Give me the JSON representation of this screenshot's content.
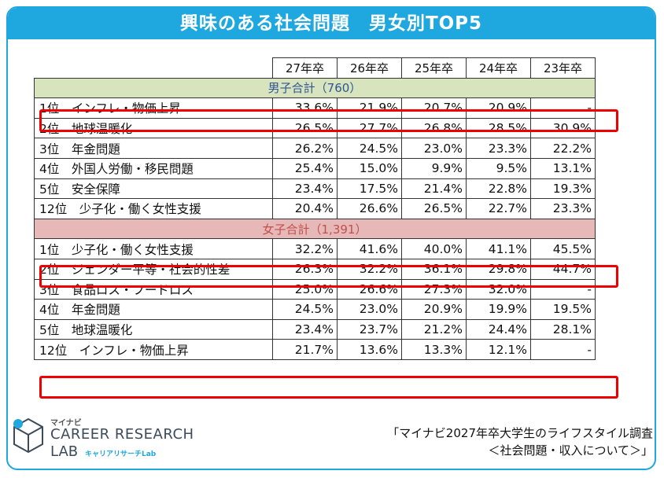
{
  "title": "興味のある社会問題　男女別TOP5",
  "columns": [
    "27年卒",
    "26年卒",
    "25年卒",
    "24年卒",
    "23年卒"
  ],
  "male": {
    "header": "男子合計（760）",
    "rows": [
      {
        "label": "1位　インフレ・物価上昇",
        "values": [
          "33.6%",
          "21.9%",
          "20.7%",
          "20.9%",
          "-"
        ]
      },
      {
        "label": "2位　地球温暖化",
        "values": [
          "26.5%",
          "27.7%",
          "26.8%",
          "28.5%",
          "30.9%"
        ]
      },
      {
        "label": "3位　年金問題",
        "values": [
          "26.2%",
          "24.5%",
          "23.0%",
          "23.3%",
          "22.2%"
        ]
      },
      {
        "label": "4位　外国人労働・移民問題",
        "values": [
          "25.4%",
          "15.0%",
          "9.9%",
          "9.5%",
          "13.1%"
        ]
      },
      {
        "label": "5位　安全保障",
        "values": [
          "23.4%",
          "17.5%",
          "21.4%",
          "22.8%",
          "19.3%"
        ]
      },
      {
        "label": "12位　少子化・働く女性支援",
        "values": [
          "20.4%",
          "26.6%",
          "26.5%",
          "22.7%",
          "23.3%"
        ]
      }
    ]
  },
  "female": {
    "header": "女子合計（1,391）",
    "rows": [
      {
        "label": "1位　少子化・働く女性支援",
        "values": [
          "32.2%",
          "41.6%",
          "40.0%",
          "41.1%",
          "45.5%"
        ]
      },
      {
        "label": "2位　ジェンダー平等・社会的性差",
        "values": [
          "26.3%",
          "32.2%",
          "36.1%",
          "29.8%",
          "44.7%"
        ]
      },
      {
        "label": "3位　食品ロス・フードロス",
        "values": [
          "25.0%",
          "26.6%",
          "27.3%",
          "32.0%",
          "-"
        ]
      },
      {
        "label": "4位　年金問題",
        "values": [
          "24.5%",
          "23.0%",
          "20.9%",
          "19.9%",
          "19.5%"
        ]
      },
      {
        "label": "5位　地球温暖化",
        "values": [
          "23.4%",
          "23.7%",
          "21.2%",
          "24.4%",
          "28.1%"
        ]
      },
      {
        "label": "12位　インフレ・物価上昇",
        "values": [
          "21.7%",
          "13.6%",
          "13.3%",
          "12.1%",
          "-"
        ]
      }
    ]
  },
  "logo": {
    "small": "マイナビ",
    "line1": "CAREER RESEARCH",
    "line2": "LAB",
    "line3": "キャリアリサーチLab"
  },
  "source": {
    "line1": "「マイナビ2027年卒大学生のライフスタイル調査",
    "line2": "＜社会問題・収入について＞」"
  },
  "colors": {
    "accent": "#1fa7e0",
    "highlight": "#e00000",
    "male_band": "#d7e4bd",
    "female_band": "#e6b8b7"
  }
}
